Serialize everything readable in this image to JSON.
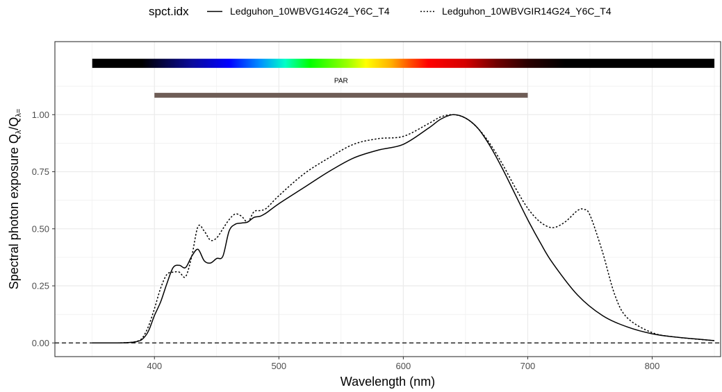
{
  "chart_data": {
    "type": "line",
    "xlabel": "Wavelength (nm)",
    "ylabel_main": "Spectral  photon  exposure  Q",
    "ylabel_sub1": "λ",
    "ylabel_slash": "/Q",
    "ylabel_sub2": "λ=",
    "xlim": [
      320,
      855
    ],
    "ylim": [
      -0.06,
      1.32
    ],
    "x_ticks": [
      400,
      500,
      600,
      700,
      800
    ],
    "y_ticks": [
      0.0,
      0.25,
      0.5,
      0.75,
      1.0
    ],
    "x_tick_labels": [
      "400",
      "500",
      "600",
      "700",
      "800"
    ],
    "y_tick_labels": [
      "0.00",
      "0.25",
      "0.50",
      "0.75",
      "1.00"
    ],
    "grid": true,
    "legend": {
      "position": "top",
      "title": "spct.idx",
      "entries": [
        {
          "label": "Ledguhon_10WBVG14G24_Y6C_T4",
          "linetype": "solid"
        },
        {
          "label": "Ledguhon_10WBVGIR14G24_Y6C_T4",
          "linetype": "dotted"
        }
      ]
    },
    "colors": {
      "line": "#000000",
      "par_bar": "#6e5d56",
      "grid": "#ebebeb",
      "panel_border": "#333333"
    },
    "wavelength_band": {
      "x_range": [
        350,
        850
      ]
    },
    "annotations": [
      {
        "label": "PAR",
        "x_range": [
          400,
          700
        ],
        "y": 1.085
      }
    ],
    "hline": {
      "y": 0.0,
      "linetype": "dashed"
    },
    "series": [
      {
        "name": "Ledguhon_10WBVG14G24_Y6C_T4",
        "linetype": "solid",
        "x": [
          350,
          370,
          380,
          385,
          390,
          395,
          400,
          405,
          410,
          415,
          420,
          425,
          430,
          435,
          440,
          445,
          450,
          455,
          460,
          465,
          470,
          475,
          480,
          485,
          490,
          500,
          520,
          540,
          560,
          580,
          600,
          620,
          630,
          640,
          650,
          660,
          670,
          680,
          690,
          700,
          710,
          720,
          740,
          760,
          780,
          800,
          820,
          850
        ],
        "y": [
          0.0,
          0.0,
          0.002,
          0.005,
          0.015,
          0.05,
          0.12,
          0.18,
          0.26,
          0.33,
          0.34,
          0.33,
          0.38,
          0.41,
          0.36,
          0.35,
          0.37,
          0.38,
          0.49,
          0.52,
          0.525,
          0.53,
          0.55,
          0.555,
          0.57,
          0.61,
          0.68,
          0.75,
          0.81,
          0.845,
          0.87,
          0.94,
          0.98,
          1.0,
          0.985,
          0.94,
          0.86,
          0.76,
          0.65,
          0.54,
          0.44,
          0.35,
          0.21,
          0.12,
          0.07,
          0.04,
          0.025,
          0.01
        ]
      },
      {
        "name": "Ledguhon_10WBVGIR14G24_Y6C_T4",
        "linetype": "dotted",
        "x": [
          350,
          370,
          380,
          385,
          390,
          395,
          400,
          405,
          410,
          415,
          420,
          425,
          430,
          435,
          440,
          445,
          450,
          455,
          460,
          465,
          470,
          475,
          480,
          485,
          490,
          500,
          520,
          540,
          560,
          580,
          600,
          620,
          630,
          640,
          650,
          660,
          670,
          680,
          690,
          700,
          710,
          720,
          730,
          740,
          745,
          750,
          760,
          770,
          780,
          800,
          820,
          850
        ],
        "y": [
          0.0,
          0.0,
          0.002,
          0.006,
          0.02,
          0.07,
          0.15,
          0.24,
          0.3,
          0.31,
          0.31,
          0.29,
          0.38,
          0.51,
          0.49,
          0.45,
          0.46,
          0.5,
          0.54,
          0.565,
          0.555,
          0.53,
          0.575,
          0.58,
          0.59,
          0.645,
          0.74,
          0.81,
          0.87,
          0.895,
          0.905,
          0.96,
          0.99,
          1.0,
          0.985,
          0.94,
          0.87,
          0.78,
          0.68,
          0.59,
          0.53,
          0.505,
          0.53,
          0.58,
          0.585,
          0.56,
          0.4,
          0.21,
          0.11,
          0.045,
          0.025,
          0.01
        ]
      }
    ]
  }
}
